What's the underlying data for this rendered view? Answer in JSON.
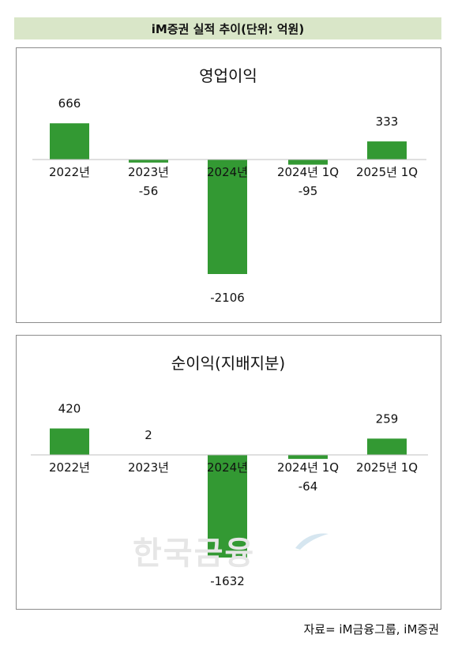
{
  "header": {
    "title": "iM증권 실적 추이(단위: 억원)"
  },
  "watermark": {
    "text": "한국금융"
  },
  "source": {
    "text": "자료= iM금융그룹, iM증권"
  },
  "colors": {
    "bar": "#339933",
    "header_bg": "#d9e6c8",
    "border": "#8c8c8c"
  },
  "chart_data": [
    {
      "type": "bar",
      "title": "영업이익",
      "categories": [
        "2022년",
        "2023년",
        "2024년",
        "2024년 1Q",
        "2025년 1Q"
      ],
      "values": [
        666,
        -56,
        -2106,
        -95,
        333
      ],
      "value_labels": [
        "666",
        "-56",
        "-2106",
        "-95",
        "333"
      ],
      "grid": false,
      "legend": "none"
    },
    {
      "type": "bar",
      "title": "순이익(지배지분)",
      "categories": [
        "2022년",
        "2023년",
        "2024년",
        "2024년 1Q",
        "2025년 1Q"
      ],
      "values": [
        420,
        2,
        -1632,
        -64,
        259
      ],
      "value_labels": [
        "420",
        "2",
        "-1632",
        "-64",
        "259"
      ],
      "grid": false,
      "legend": "none"
    }
  ]
}
